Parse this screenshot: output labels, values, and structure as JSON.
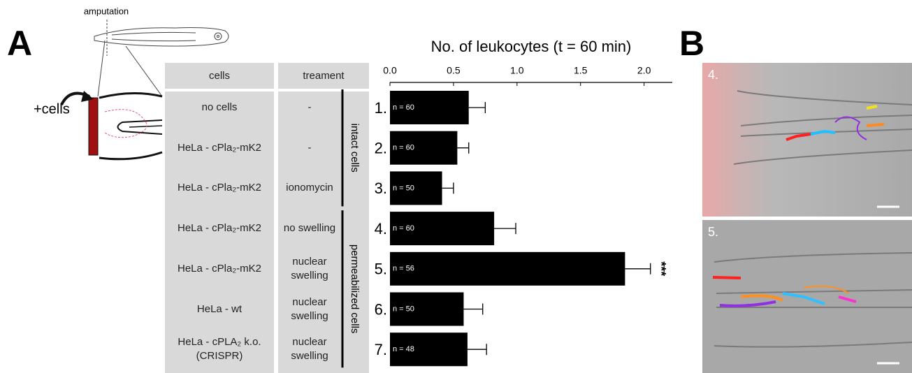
{
  "figure": {
    "panel_labels": [
      "A",
      "B"
    ],
    "schematic": {
      "amputation": "amputation",
      "cells": "+cells"
    },
    "table": {
      "headers": [
        "cells",
        "treament"
      ],
      "rows": [
        [
          "no cells",
          "-"
        ],
        [
          "HeLa - cPla₂-mK2",
          "-"
        ],
        [
          "HeLa - cPla₂-mK2",
          "ionomycin"
        ],
        [
          "HeLa - cPla₂-mK2",
          "no swelling"
        ],
        [
          "HeLa - cPla₂-mK2",
          "nuclear swelling"
        ],
        [
          "HeLa - wt",
          "nuclear swelling"
        ],
        [
          "HeLa - cPLA₂ k.o. (CRISPR)",
          "nuclear swelling"
        ]
      ],
      "groups": [
        "intact cells",
        "permeabilized cells"
      ]
    },
    "images": [
      "4.",
      "5."
    ]
  },
  "chart_data": {
    "type": "bar",
    "orientation": "horizontal",
    "title": "No. of leukocytes (t = 60 min)",
    "categories": [
      "1.",
      "2.",
      "3.",
      "4.",
      "5.",
      "6.",
      "7."
    ],
    "values": [
      0.62,
      0.53,
      0.41,
      0.82,
      1.85,
      0.58,
      0.61
    ],
    "errors": [
      0.13,
      0.09,
      0.09,
      0.17,
      0.2,
      0.15,
      0.15
    ],
    "annotations": [
      "n = 60",
      "n = 60",
      "n = 50",
      "n = 60",
      "n = 56",
      "n = 50",
      "n = 48"
    ],
    "markers": [
      null,
      null,
      null,
      null,
      "***",
      null,
      null
    ],
    "color": "#000000",
    "xlim": [
      0,
      2.2
    ],
    "xticks": [
      {
        "value": 0,
        "label": "0.0"
      },
      0.5,
      {
        "value": 1,
        "label": "1.0"
      },
      1.5,
      {
        "value": 2,
        "label": "2.0"
      }
    ]
  }
}
